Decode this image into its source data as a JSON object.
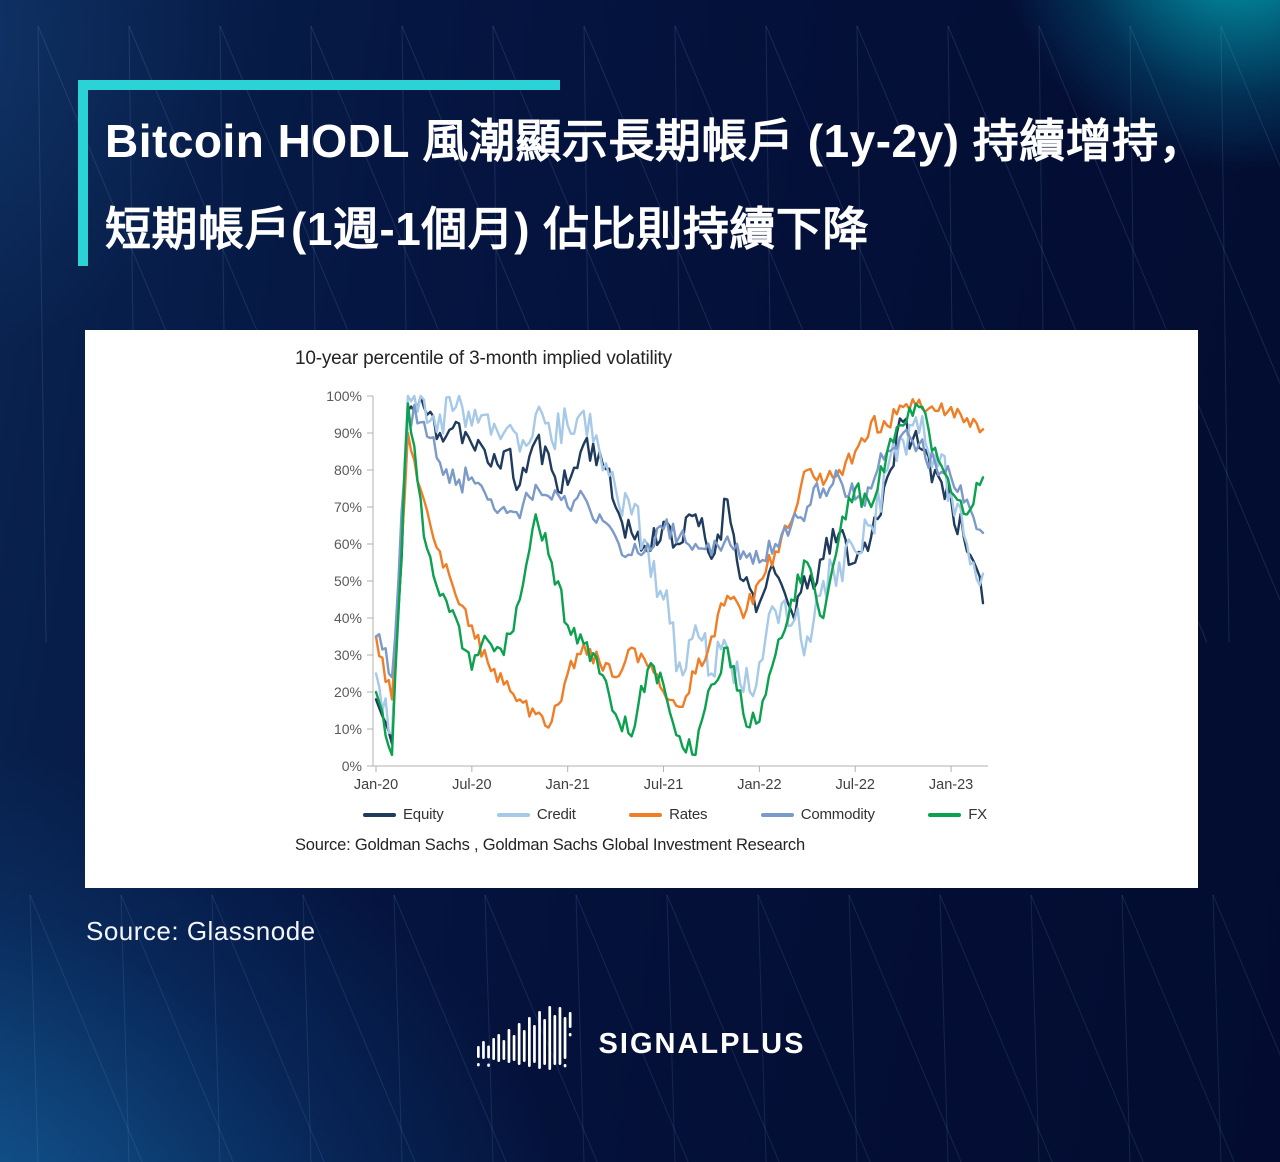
{
  "background": {
    "base_color": "#04103a",
    "accent_teal": "#2bd3d6",
    "glow_topright": "rgba(0,228,232,0.75)",
    "glow_bottomleft": "rgba(24,118,182,0.85)",
    "pattern_line_color": "#86aee0"
  },
  "title": {
    "line1": "Bitcoin HODL 風潮顯示長期帳戶 (1y-2y) 持續增持，",
    "line2": "短期帳戶(1週-1個月) 佔比則持續下降"
  },
  "caption": {
    "source_label": "Source: Glassnode"
  },
  "logo": {
    "text": "SIGNALPLUS",
    "color": "#ffffff",
    "bars": [
      {
        "h": 12,
        "dy": 8,
        "dot": "below"
      },
      {
        "h": 18,
        "dy": 6,
        "dot": "none"
      },
      {
        "h": 13,
        "dy": 8,
        "dot": "below"
      },
      {
        "h": 22,
        "dy": 5,
        "dot": "none"
      },
      {
        "h": 28,
        "dy": 4,
        "dot": "none"
      },
      {
        "h": 20,
        "dy": 6,
        "dot": "none"
      },
      {
        "h": 34,
        "dy": 2,
        "dot": "none"
      },
      {
        "h": 26,
        "dy": 4,
        "dot": "none"
      },
      {
        "h": 42,
        "dy": 0,
        "dot": "none"
      },
      {
        "h": 32,
        "dy": 2,
        "dot": "none"
      },
      {
        "h": 50,
        "dy": -2,
        "dot": "none"
      },
      {
        "h": 38,
        "dy": 0,
        "dot": "none"
      },
      {
        "h": 58,
        "dy": -4,
        "dot": "none"
      },
      {
        "h": 46,
        "dy": -2,
        "dot": "none"
      },
      {
        "h": 64,
        "dy": -6,
        "dot": "none"
      },
      {
        "h": 50,
        "dy": -4,
        "dot": "none"
      },
      {
        "h": 58,
        "dy": -8,
        "dot": "none"
      },
      {
        "h": 42,
        "dy": -6,
        "dot": "below"
      },
      {
        "h": 16,
        "dy": -24,
        "dot": "below"
      }
    ]
  },
  "chart_data": {
    "type": "line",
    "title": "10-year percentile of 3-month implied volatility",
    "source_note": "Source: Goldman Sachs , Goldman Sachs Global Investment Research",
    "xlabel": "",
    "ylabel": "",
    "ylim": [
      0,
      100
    ],
    "grid": false,
    "legend_position": "bottom",
    "x_tick_labels": [
      "Jan-20",
      "Jul-20",
      "Jan-21",
      "Jul-21",
      "Jan-22",
      "Jul-22",
      "Jan-23"
    ],
    "y_tick_labels": [
      "0%",
      "10%",
      "20%",
      "30%",
      "40%",
      "50%",
      "60%",
      "70%",
      "80%",
      "90%",
      "100%"
    ],
    "x_frequency": "monthly",
    "x_months": [
      "Jan-20",
      "Feb-20",
      "Mar-20",
      "Apr-20",
      "May-20",
      "Jun-20",
      "Jul-20",
      "Aug-20",
      "Sep-20",
      "Oct-20",
      "Nov-20",
      "Dec-20",
      "Jan-21",
      "Feb-21",
      "Mar-21",
      "Apr-21",
      "May-21",
      "Jun-21",
      "Jul-21",
      "Aug-21",
      "Sep-21",
      "Oct-21",
      "Nov-21",
      "Dec-21",
      "Jan-22",
      "Feb-22",
      "Mar-22",
      "Apr-22",
      "May-22",
      "Jun-22",
      "Jul-22",
      "Aug-22",
      "Sep-22",
      "Oct-22",
      "Nov-22",
      "Dec-22",
      "Jan-23",
      "Feb-23",
      "Mar-23"
    ],
    "series": [
      {
        "name": "Equity",
        "color": "#1f3b5e",
        "values": [
          18,
          6,
          96,
          97,
          90,
          93,
          87,
          82,
          85,
          76,
          88,
          80,
          76,
          87,
          85,
          70,
          63,
          58,
          66,
          60,
          68,
          56,
          72,
          50,
          44,
          52,
          42,
          48,
          56,
          63,
          55,
          62,
          78,
          93,
          86,
          80,
          72,
          58,
          44
        ]
      },
      {
        "name": "Credit",
        "color": "#a6c9e8",
        "values": [
          25,
          9,
          100,
          99,
          95,
          97,
          92,
          95,
          90,
          85,
          95,
          88,
          92,
          96,
          85,
          75,
          68,
          60,
          45,
          28,
          38,
          25,
          32,
          20,
          28,
          42,
          38,
          35,
          50,
          55,
          58,
          65,
          80,
          88,
          90,
          84,
          74,
          60,
          52
        ]
      },
      {
        "name": "Rates",
        "color": "#f07e26",
        "values": [
          35,
          18,
          90,
          72,
          58,
          46,
          38,
          28,
          22,
          18,
          14,
          12,
          25,
          33,
          28,
          24,
          32,
          27,
          20,
          16,
          25,
          35,
          46,
          40,
          50,
          58,
          66,
          80,
          76,
          80,
          85,
          93,
          92,
          97,
          99,
          96,
          97,
          94,
          91
        ]
      },
      {
        "name": "Commodity",
        "color": "#7b9ac9",
        "values": [
          35,
          24,
          95,
          93,
          82,
          76,
          78,
          72,
          70,
          67,
          76,
          72,
          70,
          73,
          68,
          62,
          57,
          60,
          64,
          62,
          60,
          57,
          62,
          58,
          55,
          60,
          65,
          70,
          75,
          78,
          72,
          75,
          85,
          90,
          87,
          82,
          78,
          72,
          63
        ]
      },
      {
        "name": "FX",
        "color": "#0ba14e",
        "values": [
          20,
          3,
          98,
          62,
          46,
          40,
          26,
          34,
          30,
          45,
          68,
          55,
          38,
          33,
          25,
          14,
          8,
          26,
          22,
          8,
          3,
          22,
          32,
          14,
          12,
          30,
          45,
          55,
          40,
          62,
          75,
          70,
          85,
          92,
          97,
          86,
          74,
          68,
          78
        ]
      }
    ]
  }
}
